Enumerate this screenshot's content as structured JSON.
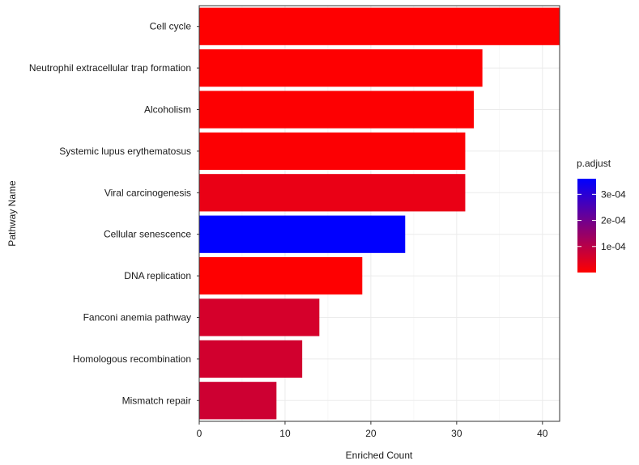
{
  "chart_data": {
    "type": "bar",
    "orientation": "horizontal",
    "xlabel": "Enriched Count",
    "ylabel": "Pathway Name",
    "xlim": [
      0,
      42
    ],
    "x_ticks": [
      0,
      10,
      20,
      30,
      40
    ],
    "grid": true,
    "legend_position": "right",
    "categories": [
      "Cell cycle",
      "Neutrophil extracellular trap formation",
      "Alcoholism",
      "Systemic lupus erythematosus",
      "Viral carcinogenesis",
      "Cellular senescence",
      "DNA replication",
      "Fanconi anemia pathway",
      "Homologous recombination",
      "Mismatch repair"
    ],
    "values": [
      42,
      33,
      32,
      31,
      31,
      24,
      19,
      14,
      12,
      9
    ],
    "p_adjust": [
      1e-06,
      2e-06,
      3e-06,
      4e-06,
      3e-05,
      0.00036,
      1e-06,
      6e-05,
      6.5e-05,
      7e-05
    ],
    "color_legend": {
      "title": "p.adjust",
      "tick_labels": [
        "3e-04",
        "2e-04",
        "1e-04"
      ],
      "tick_values": [
        0.0003,
        0.0002,
        0.0001
      ],
      "range": [
        0.0,
        0.00036
      ],
      "low_color": "#ff0000",
      "high_color": "#0000ff"
    }
  }
}
